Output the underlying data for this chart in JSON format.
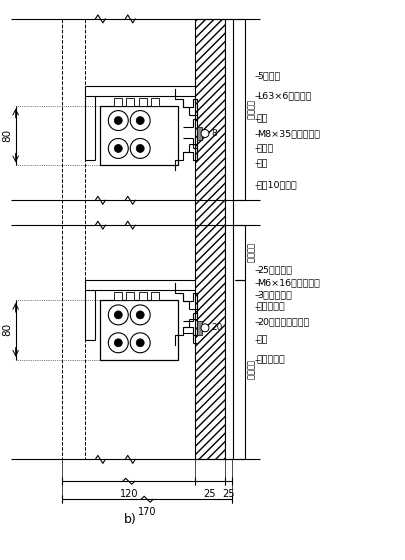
{
  "bg_color": "#ffffff",
  "line_color": "#000000",
  "label_b": "b)",
  "dim_80_top": "80",
  "dim_80_bot": "80",
  "dim_120": "120",
  "dim_25a": "25",
  "dim_25b": "25",
  "dim_170": "170",
  "fenge": "分格尺寸",
  "labels_top": [
    "5厘钒板",
    "L63×6镀锥角钒",
    "挂件",
    "M8×35不锈钒螺栓",
    "橡胶条",
    "挂件",
    "立柴10号槽钒"
  ],
  "labels_bot": [
    "25厘花岗石",
    "M6×16不锈钒螺钉",
    "3厘塑料垫片",
    "填充锁固剂",
    "20厘不锈钒装饰条",
    "挂件",
    "不锈钒螺栓"
  ],
  "ann_8": "8",
  "ann_20": "20"
}
